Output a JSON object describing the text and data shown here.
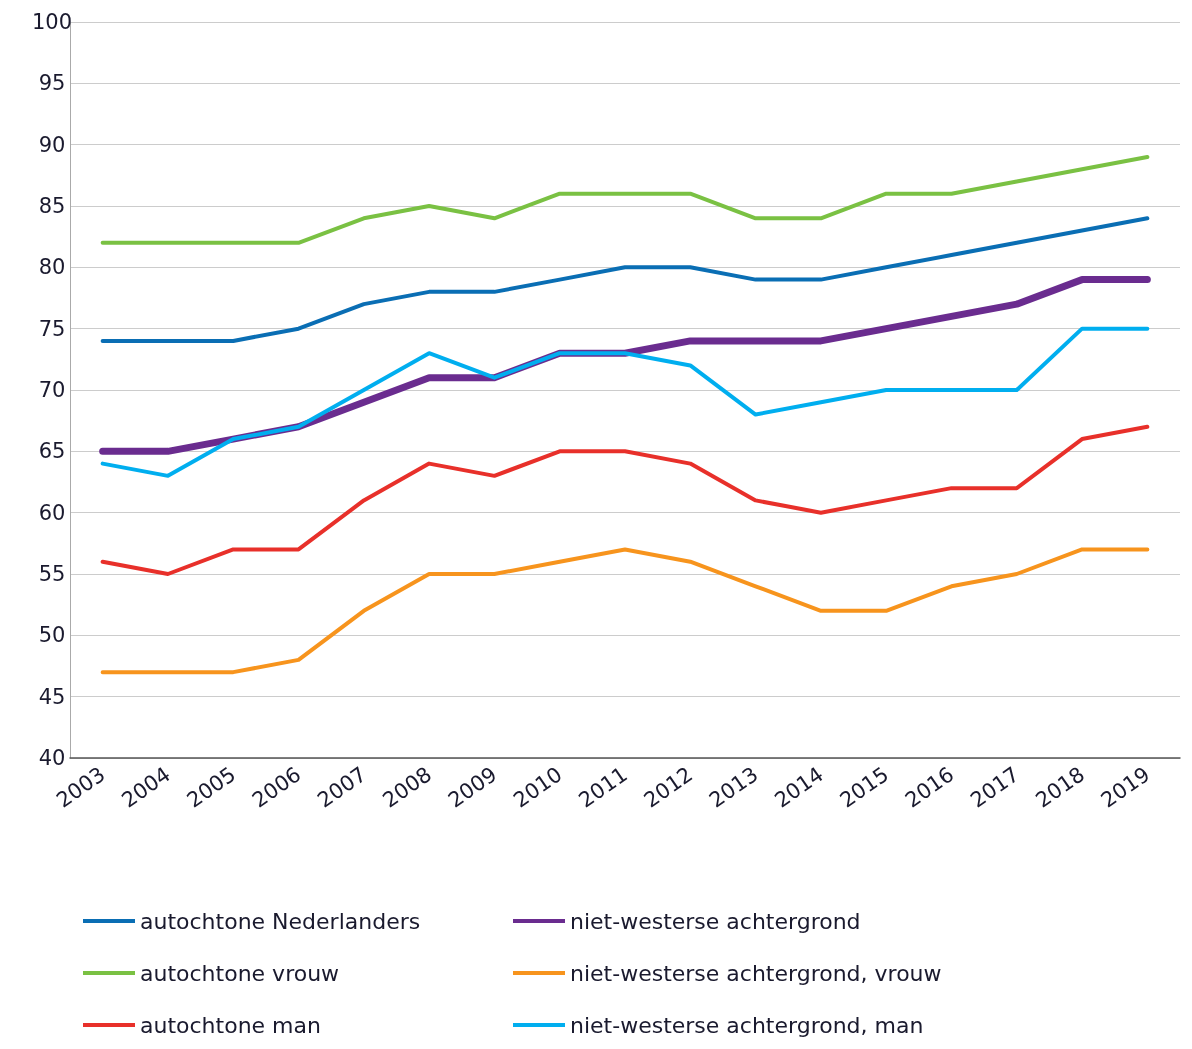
{
  "chart_data": {
    "type": "line",
    "categories": [
      "2003",
      "2004",
      "2005",
      "2006",
      "2007",
      "2008",
      "2009",
      "2010",
      "2011",
      "2012",
      "2013",
      "2014",
      "2015",
      "2016",
      "2017",
      "2018",
      "2019"
    ],
    "series": [
      {
        "name": "autochtone Nederlanders",
        "color": "#0a6eb4",
        "values": [
          74,
          74,
          74,
          75,
          77,
          78,
          78,
          79,
          80,
          80,
          79,
          79,
          80,
          81,
          82,
          83,
          84
        ]
      },
      {
        "name": "autochtone vrouw",
        "color": "#7ac143",
        "values": [
          82,
          82,
          82,
          82,
          84,
          85,
          84,
          86,
          86,
          86,
          84,
          84,
          86,
          86,
          87,
          88,
          89
        ]
      },
      {
        "name": "autochtone man",
        "color": "#e8302a",
        "values": [
          56,
          55,
          57,
          57,
          61,
          64,
          63,
          65,
          65,
          64,
          61,
          60,
          61,
          62,
          62,
          66,
          67
        ]
      },
      {
        "name": "niet-westerse achtergrond",
        "color": "#6a2c8f",
        "values": [
          65,
          65,
          66,
          67,
          69,
          71,
          71,
          73,
          73,
          74,
          74,
          74,
          75,
          76,
          77,
          79,
          79
        ]
      },
      {
        "name": "niet-westerse achtergrond, vrouw",
        "color": "#f7941d",
        "values": [
          47,
          47,
          47,
          48,
          52,
          55,
          55,
          56,
          57,
          56,
          54,
          52,
          52,
          54,
          55,
          57,
          57
        ]
      },
      {
        "name": "niet-westerse achtergrond, man",
        "color": "#00aeef",
        "values": [
          64,
          63,
          66,
          67,
          70,
          73,
          71,
          73,
          73,
          72,
          68,
          69,
          70,
          70,
          70,
          75,
          75
        ]
      }
    ],
    "ylim": [
      40,
      100
    ],
    "yticks": [
      40,
      45,
      50,
      55,
      60,
      65,
      70,
      75,
      80,
      85,
      90,
      95,
      100
    ],
    "grid": "y",
    "legend": "bottom",
    "marker": "none",
    "line_style": "solid"
  }
}
